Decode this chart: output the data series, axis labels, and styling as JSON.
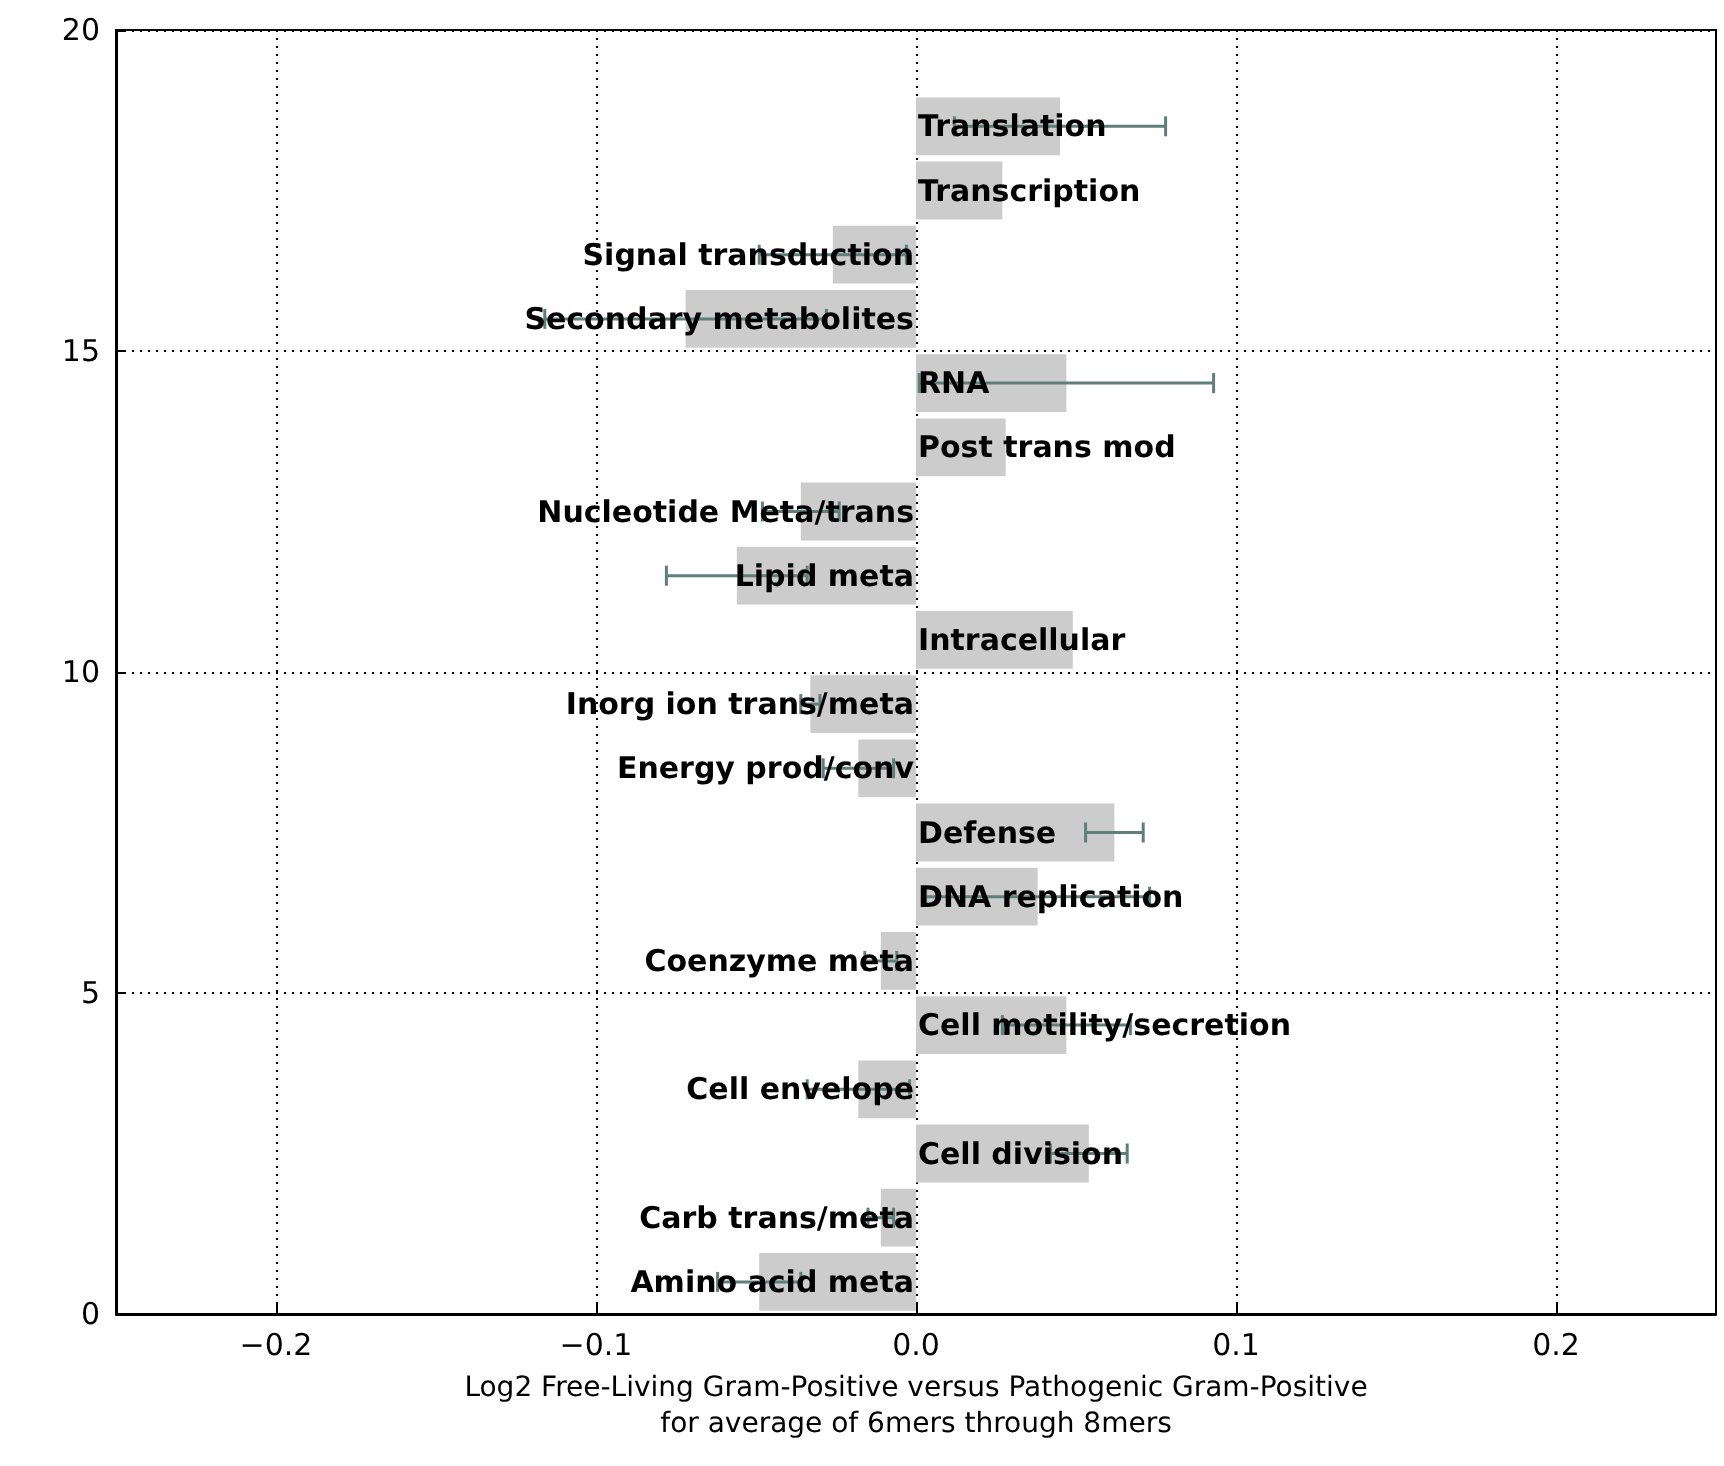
{
  "chart_data": {
    "type": "bar",
    "orientation": "horizontal",
    "xlabel": "Log2 Free-Living Gram-Positive versus Pathogenic Gram-Positive\nfor average of 6mers through 8mers",
    "x": [
      0.5,
      1.5,
      2.5,
      3.5,
      4.5,
      5.5,
      6.5,
      7.5,
      8.5,
      9.5,
      10.5,
      11.5,
      12.5,
      13.5,
      14.5,
      15.5,
      16.5,
      17.5,
      18.5
    ],
    "values": [
      -0.049,
      -0.011,
      0.054,
      -0.018,
      0.047,
      -0.011,
      0.038,
      0.062,
      -0.018,
      -0.033,
      0.049,
      -0.056,
      -0.036,
      0.028,
      0.047,
      -0.072,
      -0.026,
      0.027,
      0.045
    ],
    "errors": [
      0.013,
      0.004,
      0.012,
      0.016,
      0.02,
      0.005,
      0.035,
      0.009,
      0.011,
      0.003,
      null,
      0.022,
      0.012,
      null,
      0.046,
      0.044,
      0.023,
      null,
      0.033
    ],
    "color": "#cccccc",
    "annotations": [
      "Amino acid meta",
      "Carb trans/meta",
      "Cell division",
      "Cell envelope",
      "Cell motility/secretion",
      "Coenzyme meta",
      "DNA replication",
      "Defense",
      "Energy prod/conv",
      "Inorg ion trans/meta",
      "Intracellular",
      "Lipid meta",
      "Nucleotide Meta/trans",
      "Post trans mod",
      "RNA",
      "Secondary metabolites",
      "Signal transduction",
      "Transcription",
      "Translation"
    ],
    "xlim": [
      -0.25,
      0.25
    ],
    "xticks": [
      {
        "value": -0.2,
        "label": "−0.2"
      },
      {
        "value": -0.1,
        "label": "−0.1"
      },
      {
        "value": 0,
        "label": "0.0"
      },
      {
        "value": 0.1,
        "label": "0.1"
      },
      {
        "value": 0.2,
        "label": "0.2"
      }
    ],
    "ylim": [
      0,
      20
    ],
    "yticks": [
      0,
      5,
      10,
      15,
      20
    ],
    "grid": true
  }
}
